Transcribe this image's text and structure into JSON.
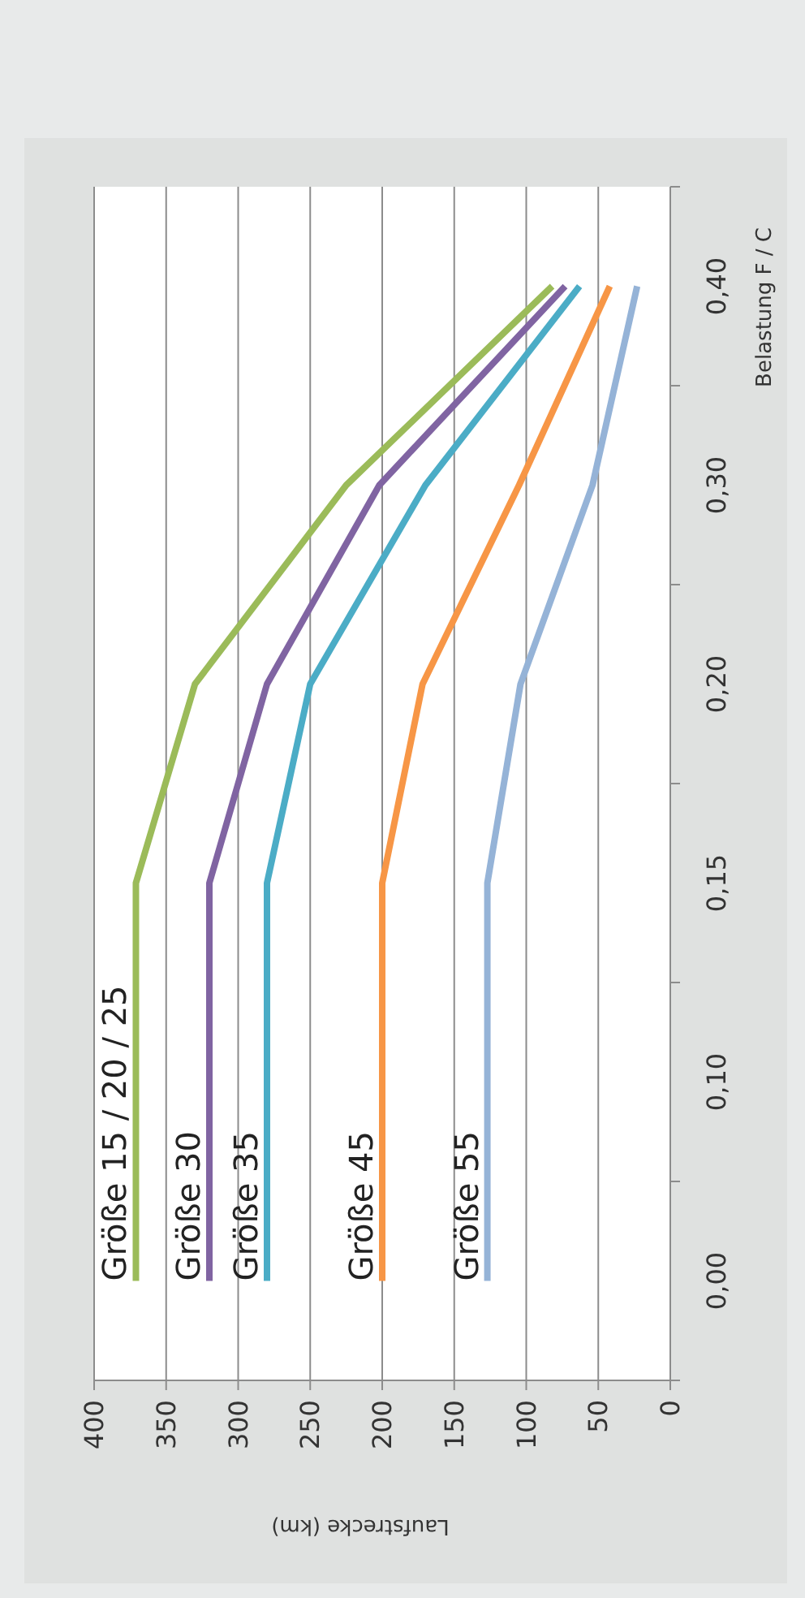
{
  "chart_data": {
    "type": "line",
    "orientation": "horizontal",
    "xlabel": "Laufstrecke (km)",
    "ylabel": "Belastung F / C",
    "categories": [
      "0,40",
      "0,30",
      "0,20",
      "0,15",
      "0,10",
      "0,00"
    ],
    "series": [
      {
        "name": "Größe 15 / 20 / 25",
        "color": "#9bbb59",
        "values": [
          82,
          225,
          330,
          371,
          371,
          371
        ]
      },
      {
        "name": "Größe 30",
        "color": "#8064a2",
        "values": [
          73,
          202,
          280,
          320,
          320,
          320
        ]
      },
      {
        "name": "Größe 35",
        "color": "#4bacc6",
        "values": [
          63,
          170,
          250,
          280,
          280,
          280
        ]
      },
      {
        "name": "Größe 45",
        "color": "#f79646",
        "values": [
          42,
          105,
          172,
          200,
          200,
          200
        ]
      },
      {
        "name": "Größe 55",
        "color": "#95b3d7",
        "values": [
          23,
          54,
          104,
          127,
          127,
          127
        ]
      }
    ],
    "xlim": [
      400,
      0
    ],
    "xticks": [
      400,
      350,
      300,
      250,
      200,
      150,
      100,
      50,
      0
    ],
    "grid": "x",
    "legend": false,
    "marker": "none",
    "line_style": "solid"
  }
}
